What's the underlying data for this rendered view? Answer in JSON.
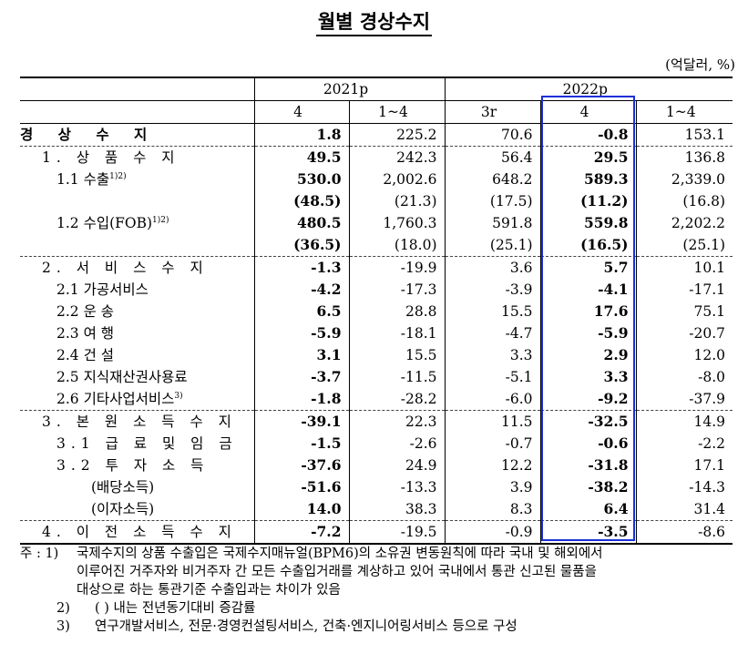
{
  "title": "월별 경상수지",
  "unit": "(억달러, %)",
  "header": {
    "year_2021": "2021p",
    "year_2022": "2022p",
    "cols": [
      "4",
      "1~4",
      "3r",
      "4",
      "1~4"
    ]
  },
  "rows": [
    {
      "label": "경 상 수 지",
      "vals": [
        "1.8",
        "225.2",
        "70.6",
        "-0.8",
        "153.1"
      ]
    },
    {
      "label": "1. 상 품 수 지",
      "vals": [
        "49.5",
        "242.3",
        "56.4",
        "29.5",
        "136.8"
      ]
    },
    {
      "label": "1.1 수출",
      "sup": "1)2)",
      "vals": [
        "530.0",
        "2,002.6",
        "648.2",
        "589.3",
        "2,339.0"
      ]
    },
    {
      "label": "",
      "vals": [
        "(48.5)",
        "(21.3)",
        "(17.5)",
        "(11.2)",
        "(16.8)"
      ]
    },
    {
      "label": "1.2 수입(FOB)",
      "sup": "1)2)",
      "vals": [
        "480.5",
        "1,760.3",
        "591.8",
        "559.8",
        "2,202.2"
      ]
    },
    {
      "label": "",
      "vals": [
        "(36.5)",
        "(18.0)",
        "(25.1)",
        "(16.5)",
        "(25.1)"
      ]
    },
    {
      "label": "2. 서 비 스 수 지",
      "vals": [
        "-1.3",
        "-19.9",
        "3.6",
        "5.7",
        "10.1"
      ]
    },
    {
      "label": "2.1 가공서비스",
      "vals": [
        "-4.2",
        "-17.3",
        "-3.9",
        "-4.1",
        "-17.1"
      ]
    },
    {
      "label": "2.2 운 송",
      "vals": [
        "6.5",
        "28.8",
        "15.5",
        "17.6",
        "75.1"
      ]
    },
    {
      "label": "2.3 여 행",
      "vals": [
        "-5.9",
        "-18.1",
        "-4.7",
        "-5.9",
        "-20.7"
      ]
    },
    {
      "label": "2.4 건 설",
      "vals": [
        "3.1",
        "15.5",
        "3.3",
        "2.9",
        "12.0"
      ]
    },
    {
      "label": "2.5 지식재산권사용료",
      "vals": [
        "-3.7",
        "-11.5",
        "-5.1",
        "3.3",
        "-8.0"
      ]
    },
    {
      "label": "2.6 기타사업서비스",
      "sup": "3)",
      "vals": [
        "-1.8",
        "-28.2",
        "-6.0",
        "-9.2",
        "-37.9"
      ]
    },
    {
      "label": "3. 본 원 소 득 수 지",
      "vals": [
        "-39.1",
        "22.3",
        "11.5",
        "-32.5",
        "14.9"
      ]
    },
    {
      "label": "3.1 급 료 및 임 금",
      "vals": [
        "-1.5",
        "-2.6",
        "-0.7",
        "-0.6",
        "-2.2"
      ]
    },
    {
      "label": "3.2 투 자 소 득",
      "vals": [
        "-37.6",
        "24.9",
        "12.2",
        "-31.8",
        "17.1"
      ]
    },
    {
      "label": "(배당소득)",
      "vals": [
        "-51.6",
        "-13.3",
        "3.9",
        "-38.2",
        "-14.3"
      ]
    },
    {
      "label": "(이자소득)",
      "vals": [
        "14.0",
        "38.3",
        "8.3",
        "6.4",
        "31.4"
      ]
    },
    {
      "label": "4. 이 전 소 득 수 지",
      "vals": [
        "-7.2",
        "-19.5",
        "-0.9",
        "-3.5",
        "-8.6"
      ]
    }
  ],
  "notes": {
    "prefix": "주 : 1)",
    "n1_line1": "국제수지의 상품 수출입은 국제수지매뉴얼(BPM6)의 소유권 변동원칙에 따라 국내 및 해외에서",
    "n1_line2": "이루어진 거주자와 비거주자 간 모든 수출입거래를 계상하고 있어 국내에서 통관 신고된 물품을",
    "n1_line3": "대상으로 하는 통관기준 수출입과는 차이가 있음",
    "n2_key": "2)",
    "n2": "(  ) 내는 전년동기대비 증감률",
    "n3_key": "3)",
    "n3": "연구개발서비스, 전문·경영컨설팅서비스, 건축·엔지니어링서비스 등으로 구성"
  },
  "highlight_color": "#1c2fd6"
}
